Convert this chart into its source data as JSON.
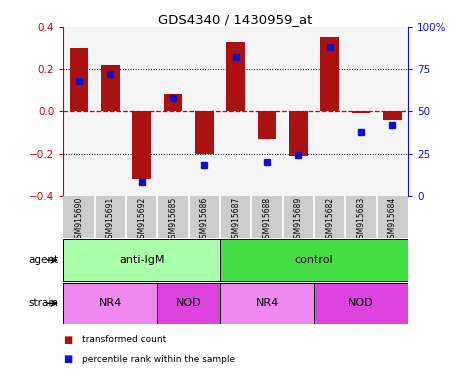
{
  "title": "GDS4340 / 1430959_at",
  "samples": [
    "GSM915690",
    "GSM915691",
    "GSM915692",
    "GSM915685",
    "GSM915686",
    "GSM915687",
    "GSM915688",
    "GSM915689",
    "GSM915682",
    "GSM915683",
    "GSM915684"
  ],
  "transformed_count": [
    0.3,
    0.22,
    -0.32,
    0.08,
    -0.2,
    0.33,
    -0.13,
    -0.21,
    0.35,
    -0.01,
    -0.04
  ],
  "percentile_rank": [
    68,
    72,
    8,
    58,
    18,
    82,
    20,
    24,
    88,
    38,
    42
  ],
  "bar_color": "#aa1111",
  "dot_color": "#1111cc",
  "agent_groups": [
    {
      "label": "anti-IgM",
      "start": 0,
      "end": 5,
      "color": "#aaffaa"
    },
    {
      "label": "control",
      "start": 5,
      "end": 11,
      "color": "#44dd44"
    }
  ],
  "strain_groups": [
    {
      "label": "NR4",
      "start": 0,
      "end": 3,
      "color": "#ee88ee"
    },
    {
      "label": "NOD",
      "start": 3,
      "end": 5,
      "color": "#dd44dd"
    },
    {
      "label": "NR4",
      "start": 5,
      "end": 8,
      "color": "#ee88ee"
    },
    {
      "label": "NOD",
      "start": 8,
      "end": 11,
      "color": "#dd44dd"
    }
  ],
  "ylim": [
    -0.4,
    0.4
  ],
  "y2lim": [
    0,
    100
  ],
  "yticks": [
    -0.4,
    -0.2,
    0,
    0.2,
    0.4
  ],
  "y2ticks": [
    0,
    25,
    50,
    75,
    100
  ],
  "y2ticklabels": [
    "0",
    "25",
    "50",
    "75",
    "100%"
  ],
  "hline_color": "#cc0000",
  "background_color": "#ffffff",
  "plot_bg_color": "#f5f5f5",
  "label_bg_color": "#cccccc"
}
